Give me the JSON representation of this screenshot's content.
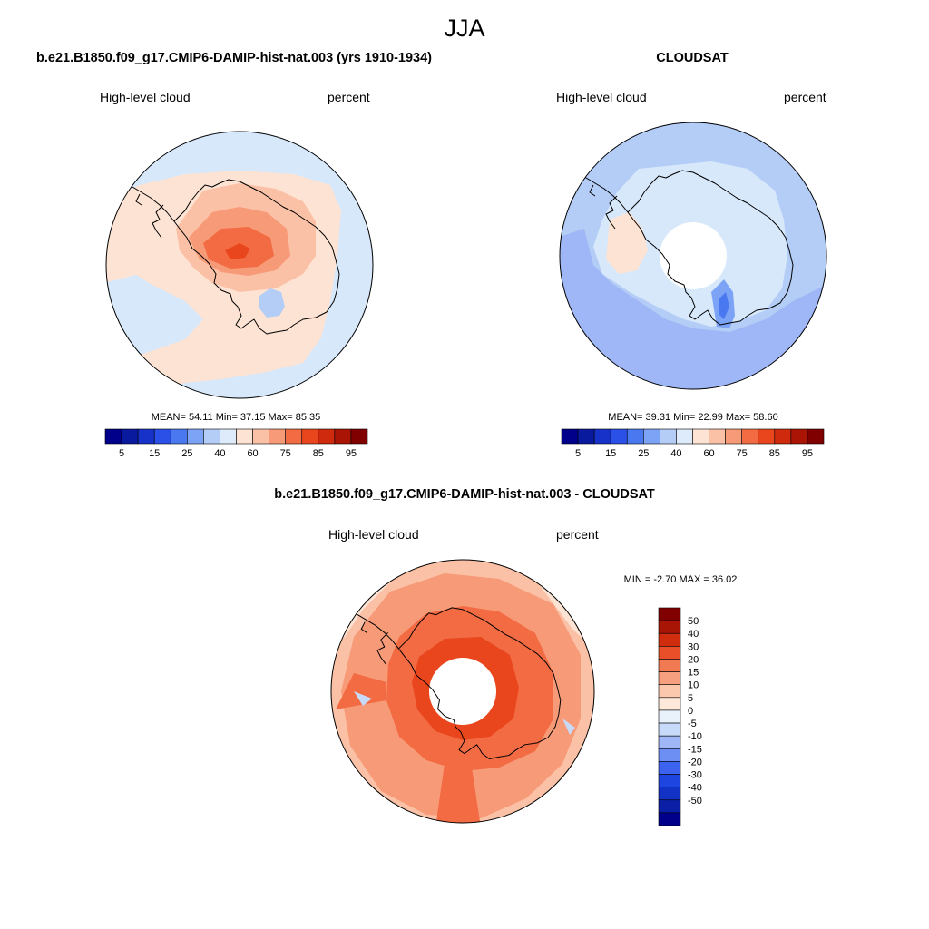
{
  "figure": {
    "season": "JJA"
  },
  "panels": [
    {
      "id": "model",
      "case_title": "b.e21.B1850.f09_g17.CMIP6-DAMIP-hist-nat.003 (yrs 1910-1934)",
      "variable": "High-level cloud",
      "units": "percent",
      "stats": "MEAN=  54.11  Min=  37.15  Max=  85.35"
    },
    {
      "id": "obs",
      "case_title": "CLOUDSAT",
      "variable": "High-level cloud",
      "units": "percent",
      "stats": "MEAN=  39.31  Min=  22.99  Max=  58.60"
    },
    {
      "id": "diff",
      "case_title": "b.e21.B1850.f09_g17.CMIP6-DAMIP-hist-nat.003 - CLOUDSAT",
      "variable": "High-level cloud",
      "units": "percent",
      "stats": "MIN =  -2.70 MAX =  36.02"
    }
  ],
  "colorbars": {
    "absolute": {
      "colors": [
        "#00008b",
        "#0a1a9e",
        "#1732c8",
        "#2a50e8",
        "#4a78f0",
        "#7ca3f5",
        "#b4cdf7",
        "#deebfb",
        "#fde3d3",
        "#fbc1a6",
        "#f79a77",
        "#f26b43",
        "#e9461d",
        "#cf2a0d",
        "#aa1404",
        "#800000"
      ],
      "tick_labels": [
        "5",
        "15",
        "25",
        "40",
        "60",
        "75",
        "85",
        "95"
      ]
    },
    "difference": {
      "colors": [
        "#00008b",
        "#0a1fa5",
        "#1232c6",
        "#1f45e0",
        "#3c63f0",
        "#6d8ff4",
        "#9fb7f6",
        "#c8daf9",
        "#e9f1fb",
        "#fde8da",
        "#fbc7ad",
        "#f7a07f",
        "#f27a52",
        "#e9502a",
        "#cf2d0d",
        "#a81505",
        "#800000"
      ],
      "tick_labels": [
        "50",
        "40",
        "30",
        "20",
        "15",
        "10",
        "5",
        "0",
        "-5",
        "-10",
        "-15",
        "-20",
        "-30",
        "-40",
        "-50"
      ]
    }
  }
}
